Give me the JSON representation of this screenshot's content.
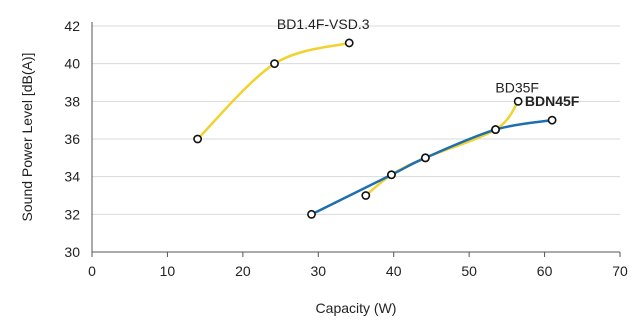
{
  "chart_data": {
    "type": "line",
    "title": "",
    "xlabel": "Capacity (W)",
    "ylabel": "Sound Power Level [dB(A)]",
    "xlim": [
      0,
      70
    ],
    "ylim": [
      30,
      42
    ],
    "xticks": [
      0,
      10,
      20,
      30,
      40,
      50,
      60,
      70
    ],
    "yticks": [
      30,
      32,
      34,
      36,
      38,
      40,
      42
    ],
    "grid": "horizontal",
    "series": [
      {
        "name": "BD1.4F-VSD.3",
        "color": "#f2d22e",
        "bold": false,
        "points": [
          [
            14,
            36
          ],
          [
            24.2,
            40
          ],
          [
            34.1,
            41.1
          ]
        ]
      },
      {
        "name": "BD35F",
        "color": "#f2d22e",
        "bold": false,
        "points": [
          [
            36.3,
            33
          ],
          [
            39.7,
            34.1
          ],
          [
            44.2,
            35
          ],
          [
            53.5,
            36.5
          ],
          [
            56.5,
            38
          ]
        ]
      },
      {
        "name": "BDN45F",
        "color": "#1f6fb0",
        "bold": true,
        "points": [
          [
            29.1,
            32
          ],
          [
            39.7,
            34.1
          ],
          [
            44.2,
            35
          ],
          [
            53.5,
            36.5
          ],
          [
            61,
            37
          ]
        ]
      }
    ]
  }
}
